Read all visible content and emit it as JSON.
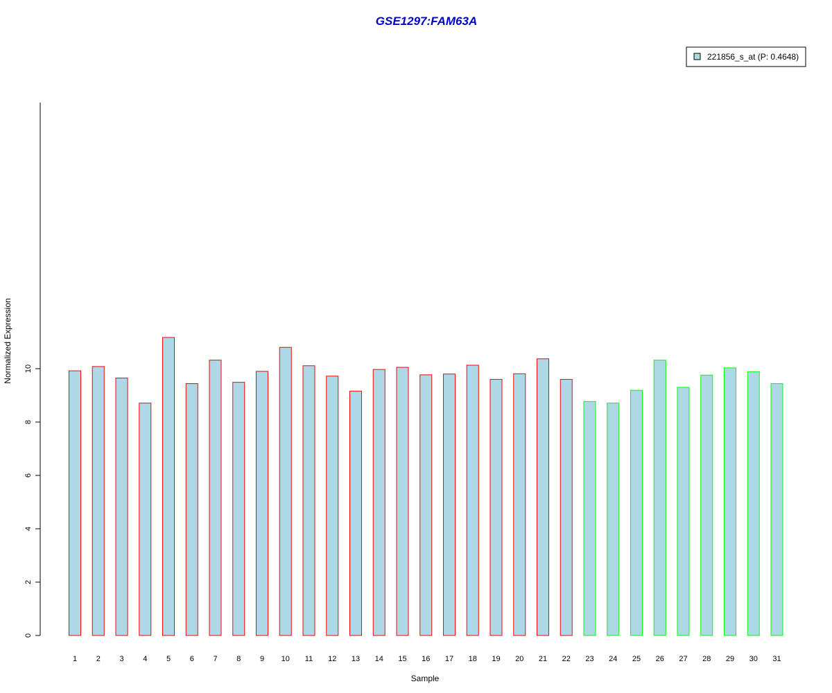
{
  "chart_data": {
    "type": "bar",
    "title": "GSE1297:FAM63A",
    "xlabel": "Sample",
    "ylabel": "Normalized Expression",
    "ylim": [
      0,
      11.25
    ],
    "yticks": [
      "0",
      "2",
      "4",
      "6",
      "8",
      "10"
    ],
    "categories": [
      "1",
      "2",
      "3",
      "4",
      "5",
      "6",
      "7",
      "8",
      "9",
      "10",
      "11",
      "12",
      "13",
      "14",
      "15",
      "16",
      "17",
      "18",
      "19",
      "20",
      "21",
      "22",
      "23",
      "24",
      "25",
      "26",
      "27",
      "28",
      "29",
      "30",
      "31"
    ],
    "values": [
      9.92,
      10.08,
      9.65,
      8.71,
      11.17,
      9.44,
      10.32,
      9.49,
      9.9,
      10.8,
      10.11,
      9.72,
      9.16,
      9.97,
      10.05,
      9.77,
      9.8,
      10.13,
      9.6,
      9.81,
      10.37,
      9.6,
      8.77,
      8.71,
      9.19,
      10.32,
      9.3,
      9.76,
      10.03,
      9.89,
      9.44
    ],
    "groups": [
      "a",
      "a",
      "a",
      "a",
      "a",
      "a",
      "a",
      "a",
      "a",
      "a",
      "a",
      "a",
      "a",
      "a",
      "a",
      "a",
      "a",
      "a",
      "a",
      "a",
      "a",
      "a",
      "b",
      "b",
      "b",
      "b",
      "b",
      "b",
      "b",
      "b",
      "b"
    ],
    "colors": {
      "bar_fill": "#add8e6",
      "group_a_outline": "#ff0000",
      "group_b_outline": "#00ff00",
      "title": "#0000cc"
    },
    "legend": {
      "label": "221856_s_at (P: 0.4648)",
      "position": "top-right"
    },
    "grid": false
  }
}
